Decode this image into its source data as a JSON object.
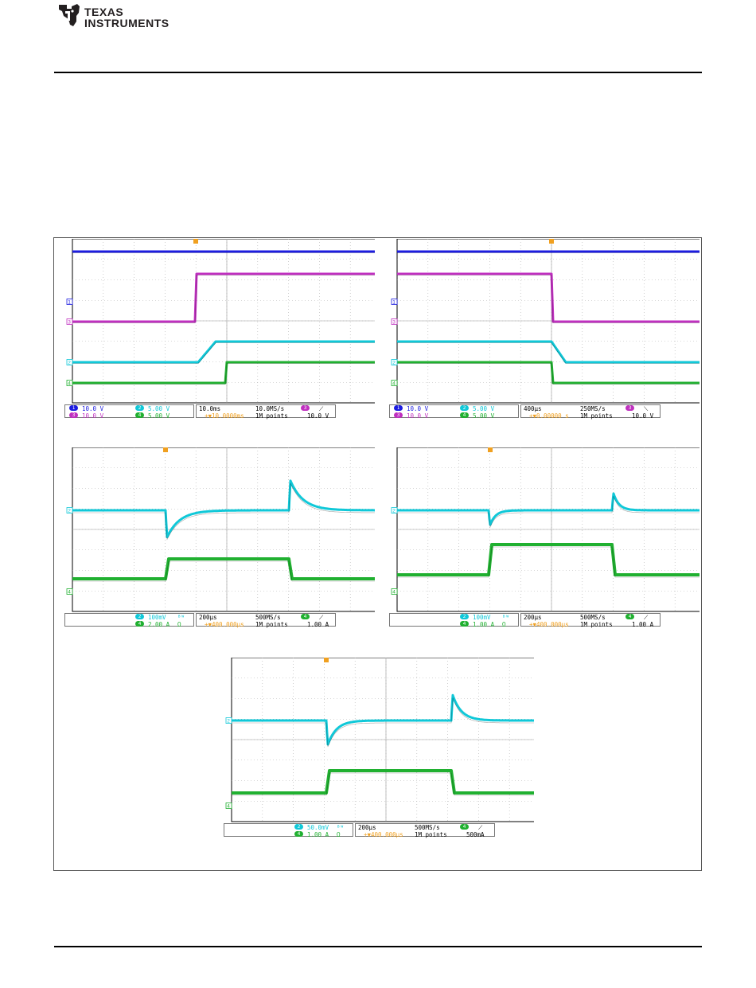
{
  "brand": {
    "line1": "Texas",
    "line2": "Instruments"
  },
  "colors": {
    "ch1": "#1c1ce0",
    "ch2": "#10c8d8",
    "ch3": "#c030c0",
    "ch4": "#20b030",
    "trigger": "#f0a020",
    "grid": "#b0b0b0"
  },
  "scopes": [
    {
      "id": "scope-1",
      "ch1": "10.0 V",
      "ch3": "10.0 V",
      "ch2": "5.00 V",
      "ch4": "5.00 V",
      "ch2_extra": "",
      "ch4_extra": "",
      "timebase": "10.0ms",
      "delay": "+▼10.0000ms",
      "rate": "10.0MS/s",
      "points": "1M points",
      "trig_ch": "3",
      "trig_slope": "⟋",
      "trig_level": "10.0 V"
    },
    {
      "id": "scope-2",
      "ch1": "10.0 V",
      "ch3": "10.0 V",
      "ch2": "5.00 V",
      "ch4": "5.00 V",
      "ch2_extra": "",
      "ch4_extra": "",
      "timebase": "400μs",
      "delay": "+▼0.00000 s",
      "rate": "250MS/s",
      "points": "1M points",
      "trig_ch": "3",
      "trig_slope": "⟍",
      "trig_level": "10.0 V"
    },
    {
      "id": "scope-3",
      "ch1": "",
      "ch3": "",
      "ch2": "100mV",
      "ch4": "2.00 A",
      "ch2_extra": "ᴮᵂ",
      "ch4_extra": "Ω",
      "timebase": "200μs",
      "delay": "+▼400.000μs",
      "rate": "500MS/s",
      "points": "1M points",
      "trig_ch": "4",
      "trig_slope": "⟋",
      "trig_level": "1.00 A"
    },
    {
      "id": "scope-4",
      "ch1": "",
      "ch3": "",
      "ch2": "100mV",
      "ch4": "1.00 A",
      "ch2_extra": "ᴮᵂ",
      "ch4_extra": "Ω",
      "timebase": "200μs",
      "delay": "+▼400.000μs",
      "rate": "500MS/s",
      "points": "1M points",
      "trig_ch": "4",
      "trig_slope": "⟋",
      "trig_level": "1.00 A"
    },
    {
      "id": "scope-5",
      "ch1": "",
      "ch3": "",
      "ch2": "50.0mV",
      "ch4": "1.00 A",
      "ch2_extra": "ᴮᵂ",
      "ch4_extra": "Ω",
      "timebase": "200μs",
      "delay": "+▼400.000μs",
      "rate": "500MS/s",
      "points": "1M points",
      "trig_ch": "4",
      "trig_slope": "⟋",
      "trig_level": "500mA"
    }
  ]
}
